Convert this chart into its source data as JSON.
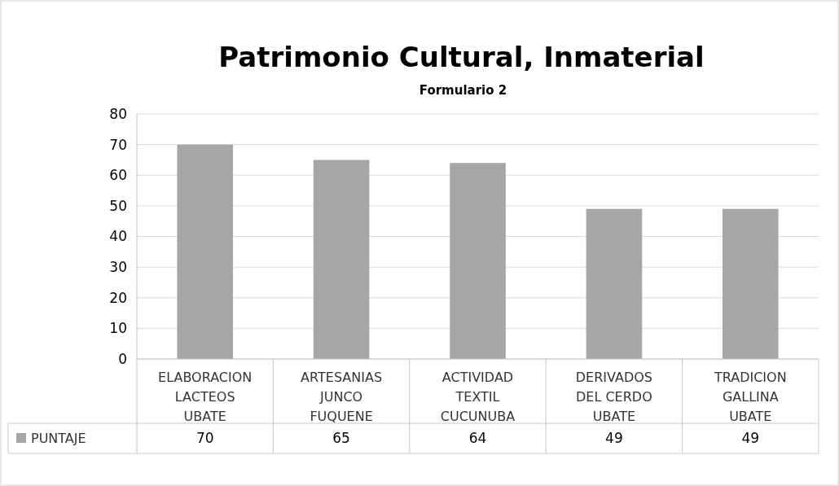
{
  "chart_data": {
    "type": "bar",
    "title": "Patrimonio Cultural, Inmaterial",
    "subtitle": "Formulario 2",
    "categories": [
      "ELABORACION LACTEOS UBATE",
      "ARTESANIAS JUNCO FUQUENE",
      "ACTIVIDAD TEXTIL CUCUNUBA",
      "DERIVADOS DEL CERDO UBATE",
      "TRADICION GALLINA UBATE"
    ],
    "series": [
      {
        "name": "PUNTAJE",
        "color": "#a6a6a6",
        "values": [
          70,
          65,
          64,
          49,
          49
        ]
      }
    ],
    "ylim": [
      0,
      80
    ],
    "yticks": [
      0,
      10,
      20,
      30,
      40,
      50,
      60,
      70,
      80
    ],
    "grid": "y",
    "legend": "bottom",
    "data_labels": true
  }
}
